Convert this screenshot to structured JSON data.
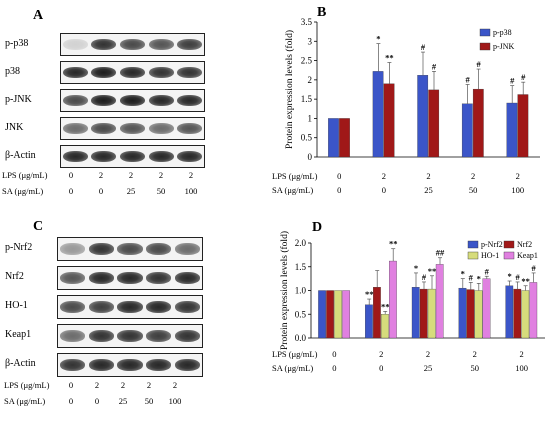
{
  "panels": {
    "A": {
      "letter": "A",
      "blots": [
        {
          "label": "p-p38",
          "bands": [
            0.15,
            0.85,
            0.75,
            0.7,
            0.8
          ]
        },
        {
          "label": "p38",
          "bands": [
            0.9,
            0.95,
            0.9,
            0.85,
            0.85
          ]
        },
        {
          "label": "p-JNK",
          "bands": [
            0.75,
            0.95,
            0.95,
            0.9,
            0.9
          ]
        },
        {
          "label": "JNK",
          "bands": [
            0.6,
            0.75,
            0.7,
            0.6,
            0.7
          ]
        },
        {
          "label": "β-Actin",
          "bands": [
            0.9,
            0.9,
            0.9,
            0.9,
            0.9
          ]
        }
      ],
      "treatments": [
        {
          "label": "LPS (μg/mL)",
          "values": [
            "0",
            "2",
            "2",
            "2",
            "2"
          ]
        },
        {
          "label": "SA (μg/mL)",
          "values": [
            "0",
            "0",
            "25",
            "50",
            "100"
          ]
        }
      ]
    },
    "C": {
      "letter": "C",
      "blots": [
        {
          "label": "p-Nrf2",
          "bands": [
            0.4,
            0.85,
            0.75,
            0.75,
            0.6
          ]
        },
        {
          "label": "Nrf2",
          "bands": [
            0.7,
            0.9,
            0.9,
            0.85,
            0.9
          ]
        },
        {
          "label": "HO-1",
          "bands": [
            0.75,
            0.8,
            0.9,
            0.9,
            0.85
          ]
        },
        {
          "label": "Keap1",
          "bands": [
            0.6,
            0.85,
            0.85,
            0.8,
            0.85
          ]
        },
        {
          "label": "β-Actin",
          "bands": [
            0.85,
            0.9,
            0.9,
            0.9,
            0.9
          ]
        }
      ],
      "treatments": [
        {
          "label": "LPS (μg/mL)",
          "values": [
            "0",
            "2",
            "2",
            "2",
            "2"
          ]
        },
        {
          "label": "SA (μg/mL)",
          "values": [
            "0",
            "0",
            "25",
            "50",
            "100"
          ]
        }
      ]
    }
  },
  "chart_data": [
    {
      "panel": "B",
      "type": "bar",
      "ylabel": "Protein expression levels (fold)",
      "ylim": [
        0,
        3.5
      ],
      "yticks": [
        "0",
        "0.5",
        "1",
        "1.5",
        "2",
        "2.5",
        "3",
        "3.5"
      ],
      "legend": "top-right",
      "series": [
        {
          "name": "p-p38",
          "color": "#3b55c8",
          "values": [
            1.0,
            2.22,
            2.12,
            1.38,
            1.4
          ],
          "errors": [
            0,
            0.72,
            0.6,
            0.5,
            0.45
          ],
          "sig": [
            "",
            "*",
            "#",
            "#",
            "#"
          ]
        },
        {
          "name": "p-JNK",
          "color": "#a01818",
          "values": [
            1.0,
            1.9,
            1.74,
            1.76,
            1.62
          ],
          "errors": [
            0,
            0.55,
            0.48,
            0.52,
            0.32
          ],
          "sig": [
            "",
            "**",
            "#",
            "#",
            "#"
          ]
        }
      ],
      "treatments": [
        {
          "label": "LPS (μg/mL)",
          "values": [
            "0",
            "2",
            "2",
            "2",
            "2"
          ]
        },
        {
          "label": "SA (μg/mL)",
          "values": [
            "0",
            "0",
            "25",
            "50",
            "100"
          ]
        }
      ]
    },
    {
      "panel": "D",
      "type": "bar",
      "ylabel": "Protein expression levels (fold)",
      "ylim": [
        0,
        2.0
      ],
      "yticks": [
        "0.0",
        "0.5",
        "1.0",
        "1.5",
        "2.0"
      ],
      "legend": "top-right",
      "series": [
        {
          "name": "p-Nrf2",
          "color": "#3b55c8",
          "values": [
            1.0,
            0.7,
            1.07,
            1.05,
            1.1
          ],
          "errors": [
            0,
            0.12,
            0.3,
            0.2,
            0.1
          ],
          "sig": [
            "",
            "**",
            "*",
            "*",
            "*"
          ]
        },
        {
          "name": "Nrf2",
          "color": "#a01818",
          "values": [
            1.0,
            1.07,
            1.03,
            1.02,
            1.03
          ],
          "errors": [
            0,
            0.35,
            0.15,
            0.15,
            0.15
          ],
          "sig": [
            "",
            "",
            "#",
            "#",
            "#"
          ]
        },
        {
          "name": "HO-1",
          "color": "#d6dc7c",
          "values": [
            1.0,
            0.5,
            1.03,
            1.0,
            1.0
          ],
          "errors": [
            0,
            0.06,
            0.28,
            0.15,
            0.1
          ],
          "sig": [
            "",
            "**",
            "**",
            "*",
            "**"
          ]
        },
        {
          "name": "Keap1",
          "color": "#e080e0",
          "values": [
            1.0,
            1.62,
            1.55,
            1.25,
            1.17
          ],
          "errors": [
            0,
            0.26,
            0.14,
            0.05,
            0.2
          ],
          "sig": [
            "",
            "**",
            "##",
            "#",
            "#"
          ]
        }
      ],
      "treatments": [
        {
          "label": "LPS (μg/mL)",
          "values": [
            "0",
            "2",
            "2",
            "2",
            "2"
          ]
        },
        {
          "label": "SA (μg/mL)",
          "values": [
            "0",
            "0",
            "25",
            "50",
            "100"
          ]
        }
      ]
    }
  ]
}
